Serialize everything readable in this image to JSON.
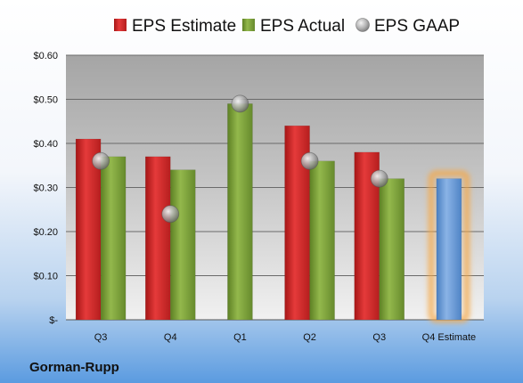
{
  "company": "Gorman-Rupp",
  "chart_data": {
    "type": "bar",
    "title": "",
    "xlabel": "",
    "ylabel": "",
    "categories": [
      "Q3",
      "Q4",
      "Q1",
      "Q2",
      "Q3",
      "Q4 Estimate"
    ],
    "ylim": [
      0,
      0.6
    ],
    "yticks": [
      0,
      0.1,
      0.2,
      0.3,
      0.4,
      0.5,
      0.6
    ],
    "ytick_labels": [
      "$-",
      "$0.10",
      "$0.20",
      "$0.30",
      "$0.40",
      "$0.50",
      "$0.60"
    ],
    "grid": true,
    "legend_position": "top",
    "series": [
      {
        "name": "EPS Estimate",
        "kind": "bar",
        "color": "#d42a2a",
        "values": [
          0.41,
          0.37,
          null,
          0.44,
          0.38,
          null
        ]
      },
      {
        "name": "EPS Actual",
        "kind": "bar",
        "color": "#82a83c",
        "values": [
          0.37,
          0.34,
          0.49,
          0.36,
          0.32,
          null
        ]
      },
      {
        "name": "EPS GAAP",
        "kind": "point",
        "color": "#b8b8b8",
        "values": [
          0.36,
          0.24,
          0.49,
          0.36,
          0.32,
          null
        ]
      },
      {
        "name": "",
        "kind": "bar",
        "color": "#6f9fd8",
        "highlight": "#f5a848",
        "values": [
          null,
          null,
          null,
          null,
          null,
          0.32
        ]
      }
    ]
  }
}
